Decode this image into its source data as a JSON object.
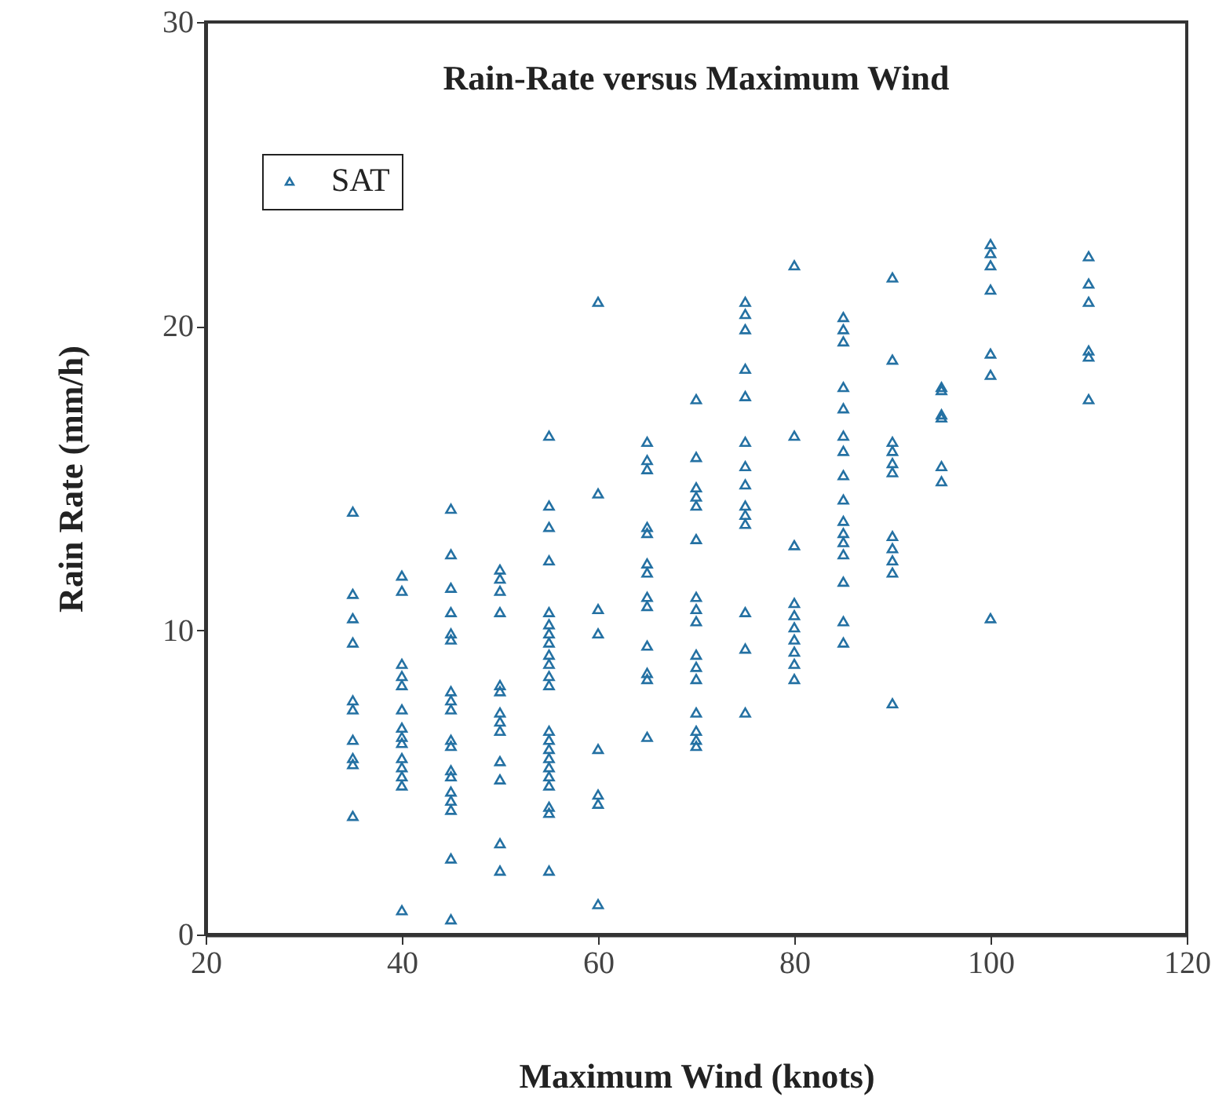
{
  "chart_data": {
    "type": "scatter",
    "title": "Rain-Rate versus Maximum Wind",
    "xlabel": "Maximum Wind (knots)",
    "ylabel": "Rain Rate (mm/h)",
    "xlim": [
      20,
      120
    ],
    "xticks": [
      20,
      40,
      60,
      80,
      100,
      120
    ],
    "ylim": [
      0,
      30
    ],
    "yticks": [
      0,
      10,
      20,
      30
    ],
    "grid": false,
    "legend": "top left",
    "marker": "triangle",
    "series": [
      {
        "name": "SAT",
        "color": "#2471a3",
        "x": [
          35,
          35,
          35,
          35,
          35,
          35,
          35,
          35,
          35,
          35,
          40,
          40,
          40,
          40,
          40,
          40,
          40,
          40,
          40,
          40,
          40,
          40,
          40,
          40,
          45,
          45,
          45,
          45,
          45,
          45,
          45,
          45,
          45,
          45,
          45,
          45,
          45,
          45,
          45,
          45,
          45,
          45,
          50,
          50,
          50,
          50,
          50,
          50,
          50,
          50,
          50,
          50,
          50,
          50,
          50,
          55,
          55,
          55,
          55,
          55,
          55,
          55,
          55,
          55,
          55,
          55,
          55,
          55,
          55,
          55,
          55,
          55,
          55,
          55,
          55,
          55,
          55,
          60,
          60,
          60,
          60,
          60,
          60,
          60,
          60,
          65,
          65,
          65,
          65,
          65,
          65,
          65,
          65,
          65,
          65,
          65,
          65,
          65,
          70,
          70,
          70,
          70,
          70,
          70,
          70,
          70,
          70,
          70,
          70,
          70,
          70,
          70,
          70,
          70,
          75,
          75,
          75,
          75,
          75,
          75,
          75,
          75,
          75,
          75,
          75,
          75,
          75,
          75,
          80,
          80,
          80,
          80,
          80,
          80,
          80,
          80,
          80,
          80,
          85,
          85,
          85,
          85,
          85,
          85,
          85,
          85,
          85,
          85,
          85,
          85,
          85,
          85,
          85,
          85,
          90,
          90,
          90,
          90,
          90,
          90,
          90,
          90,
          90,
          90,
          90,
          95,
          95,
          95,
          95,
          95,
          95,
          100,
          100,
          100,
          100,
          100,
          100,
          100,
          110,
          110,
          110,
          110,
          110,
          110
        ],
        "values": [
          13.9,
          11.2,
          10.4,
          9.6,
          7.7,
          7.4,
          6.4,
          5.8,
          5.6,
          3.9,
          11.8,
          11.3,
          8.9,
          8.5,
          8.2,
          7.4,
          6.8,
          6.5,
          6.3,
          5.8,
          5.5,
          5.2,
          4.9,
          0.8,
          14.0,
          12.5,
          11.4,
          10.6,
          9.9,
          9.7,
          8.0,
          7.7,
          7.4,
          6.4,
          6.2,
          5.4,
          5.2,
          4.7,
          4.4,
          4.1,
          2.5,
          0.5,
          12.0,
          11.7,
          11.3,
          10.6,
          8.2,
          8.0,
          7.3,
          7.0,
          6.7,
          5.7,
          5.1,
          3.0,
          2.1,
          16.4,
          14.1,
          13.4,
          12.3,
          10.6,
          10.2,
          9.9,
          9.6,
          9.2,
          8.9,
          8.5,
          8.2,
          6.7,
          6.4,
          6.1,
          5.8,
          5.5,
          5.2,
          4.9,
          4.2,
          4.0,
          2.1,
          20.8,
          14.5,
          10.7,
          9.9,
          6.1,
          4.6,
          4.3,
          1.0,
          16.2,
          15.6,
          15.3,
          13.4,
          13.2,
          12.2,
          11.9,
          11.1,
          10.8,
          9.5,
          8.6,
          8.4,
          6.5,
          17.6,
          15.7,
          14.7,
          14.4,
          14.1,
          13.0,
          11.1,
          10.7,
          10.3,
          9.2,
          8.8,
          8.4,
          7.3,
          6.7,
          6.4,
          6.2,
          20.8,
          20.4,
          19.9,
          18.6,
          17.7,
          16.2,
          15.4,
          14.8,
          14.1,
          13.8,
          13.5,
          10.6,
          9.4,
          7.3,
          22.0,
          16.4,
          12.8,
          10.9,
          10.5,
          10.1,
          9.7,
          9.3,
          8.9,
          8.4,
          20.3,
          19.9,
          19.5,
          18.0,
          17.3,
          16.4,
          15.9,
          15.1,
          14.3,
          13.6,
          13.2,
          12.9,
          12.5,
          11.6,
          10.3,
          9.6,
          21.6,
          18.9,
          16.2,
          15.9,
          15.5,
          15.2,
          13.1,
          12.7,
          12.3,
          11.9,
          7.6,
          18.0,
          17.9,
          17.1,
          17.0,
          15.4,
          14.9,
          22.7,
          22.4,
          22.0,
          21.2,
          19.1,
          18.4,
          10.4,
          22.3,
          21.4,
          20.8,
          19.2,
          19.0,
          17.6
        ]
      }
    ]
  }
}
